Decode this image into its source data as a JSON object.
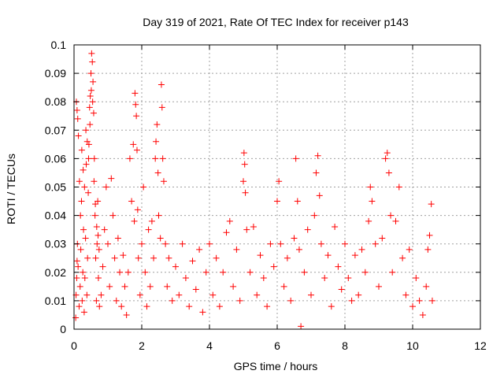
{
  "chart_data": {
    "type": "scatter",
    "title": "Day 319 of 2021, Rate Of TEC Index for receiver p143",
    "xlabel": "GPS time / hours",
    "ylabel": "ROTI / TECUs",
    "xlim": [
      0,
      12
    ],
    "ylim": [
      0,
      0.1
    ],
    "xticks": [
      "0",
      "2",
      "4",
      "6",
      "8",
      "10",
      "12"
    ],
    "yticks": [
      "0",
      "0.01",
      "0.02",
      "0.03",
      "0.04",
      "0.05",
      "0.06",
      "0.07",
      "0.08",
      "0.09",
      "0.1"
    ],
    "grid": true,
    "marker": "plus",
    "series": [
      {
        "name": "ROTI",
        "color": "#ff0000",
        "points": [
          [
            0.05,
            0.004
          ],
          [
            0.06,
            0.012
          ],
          [
            0.08,
            0.018
          ],
          [
            0.09,
            0.024
          ],
          [
            0.1,
            0.03
          ],
          [
            0.12,
            0.022
          ],
          [
            0.15,
            0.008
          ],
          [
            0.18,
            0.015
          ],
          [
            0.2,
            0.028
          ],
          [
            0.22,
            0.045
          ],
          [
            0.24,
            0.01
          ],
          [
            0.26,
            0.02
          ],
          [
            0.28,
            0.035
          ],
          [
            0.3,
            0.006
          ],
          [
            0.32,
            0.018
          ],
          [
            0.34,
            0.032
          ],
          [
            0.36,
            0.058
          ],
          [
            0.38,
            0.012
          ],
          [
            0.4,
            0.025
          ],
          [
            0.42,
            0.048
          ],
          [
            0.44,
            0.065
          ],
          [
            0.46,
            0.078
          ],
          [
            0.48,
            0.082
          ],
          [
            0.5,
            0.09
          ],
          [
            0.52,
            0.097
          ],
          [
            0.54,
            0.094
          ],
          [
            0.56,
            0.087
          ],
          [
            0.58,
            0.076
          ],
          [
            0.6,
            0.06
          ],
          [
            0.62,
            0.04
          ],
          [
            0.64,
            0.025
          ],
          [
            0.66,
            0.01
          ],
          [
            0.68,
            0.03
          ],
          [
            0.7,
            0.045
          ],
          [
            0.72,
            0.018
          ],
          [
            0.75,
            0.008
          ],
          [
            0.07,
            0.08
          ],
          [
            0.09,
            0.077
          ],
          [
            0.11,
            0.074
          ],
          [
            0.13,
            0.068
          ],
          [
            0.16,
            0.052
          ],
          [
            0.19,
            0.04
          ],
          [
            0.23,
            0.063
          ],
          [
            0.27,
            0.056
          ],
          [
            0.31,
            0.05
          ],
          [
            0.35,
            0.07
          ],
          [
            0.39,
            0.066
          ],
          [
            0.43,
            0.06
          ],
          [
            0.47,
            0.072
          ],
          [
            0.51,
            0.084
          ],
          [
            0.55,
            0.08
          ],
          [
            0.59,
            0.052
          ],
          [
            0.63,
            0.044
          ],
          [
            0.67,
            0.036
          ],
          [
            0.71,
            0.033
          ],
          [
            0.74,
            0.028
          ],
          [
            0.8,
            0.012
          ],
          [
            0.85,
            0.022
          ],
          [
            0.9,
            0.035
          ],
          [
            0.95,
            0.05
          ],
          [
            1.0,
            0.03
          ],
          [
            1.05,
            0.015
          ],
          [
            1.1,
            0.053
          ],
          [
            1.15,
            0.04
          ],
          [
            1.2,
            0.025
          ],
          [
            1.25,
            0.01
          ],
          [
            1.3,
            0.032
          ],
          [
            1.35,
            0.02
          ],
          [
            1.4,
            0.008
          ],
          [
            1.45,
            0.026
          ],
          [
            1.5,
            0.015
          ],
          [
            1.55,
            0.005
          ],
          [
            1.6,
            0.02
          ],
          [
            1.65,
            0.06
          ],
          [
            1.7,
            0.045
          ],
          [
            1.75,
            0.065
          ],
          [
            1.78,
            0.038
          ],
          [
            1.8,
            0.083
          ],
          [
            1.82,
            0.079
          ],
          [
            1.84,
            0.075
          ],
          [
            1.86,
            0.063
          ],
          [
            1.88,
            0.042
          ],
          [
            1.9,
            0.025
          ],
          [
            1.95,
            0.012
          ],
          [
            2.0,
            0.03
          ],
          [
            2.05,
            0.05
          ],
          [
            2.1,
            0.02
          ],
          [
            2.15,
            0.008
          ],
          [
            2.2,
            0.035
          ],
          [
            2.25,
            0.015
          ],
          [
            2.3,
            0.038
          ],
          [
            2.35,
            0.025
          ],
          [
            2.4,
            0.06
          ],
          [
            2.42,
            0.066
          ],
          [
            2.45,
            0.072
          ],
          [
            2.48,
            0.055
          ],
          [
            2.5,
            0.04
          ],
          [
            2.55,
            0.032
          ],
          [
            2.58,
            0.086
          ],
          [
            2.6,
            0.078
          ],
          [
            2.62,
            0.06
          ],
          [
            2.65,
            0.052
          ],
          [
            2.7,
            0.03
          ],
          [
            2.75,
            0.015
          ],
          [
            2.8,
            0.025
          ],
          [
            2.9,
            0.01
          ],
          [
            3.0,
            0.022
          ],
          [
            3.1,
            0.012
          ],
          [
            3.2,
            0.03
          ],
          [
            3.3,
            0.018
          ],
          [
            3.4,
            0.008
          ],
          [
            3.5,
            0.024
          ],
          [
            3.6,
            0.014
          ],
          [
            3.7,
            0.028
          ],
          [
            3.8,
            0.006
          ],
          [
            3.9,
            0.02
          ],
          [
            4.0,
            0.03
          ],
          [
            4.1,
            0.012
          ],
          [
            4.2,
            0.025
          ],
          [
            4.3,
            0.008
          ],
          [
            4.4,
            0.02
          ],
          [
            4.5,
            0.034
          ],
          [
            4.6,
            0.038
          ],
          [
            4.7,
            0.015
          ],
          [
            4.8,
            0.028
          ],
          [
            4.9,
            0.01
          ],
          [
            5.0,
            0.052
          ],
          [
            5.02,
            0.062
          ],
          [
            5.04,
            0.058
          ],
          [
            5.06,
            0.048
          ],
          [
            5.1,
            0.035
          ],
          [
            5.2,
            0.02
          ],
          [
            5.3,
            0.036
          ],
          [
            5.4,
            0.012
          ],
          [
            5.5,
            0.026
          ],
          [
            5.6,
            0.018
          ],
          [
            5.7,
            0.008
          ],
          [
            5.8,
            0.03
          ],
          [
            5.9,
            0.022
          ],
          [
            6.0,
            0.045
          ],
          [
            6.05,
            0.052
          ],
          [
            6.1,
            0.03
          ],
          [
            6.2,
            0.015
          ],
          [
            6.3,
            0.025
          ],
          [
            6.4,
            0.01
          ],
          [
            6.5,
            0.032
          ],
          [
            6.55,
            0.06
          ],
          [
            6.6,
            0.045
          ],
          [
            6.65,
            0.028
          ],
          [
            6.7,
            0.001
          ],
          [
            6.8,
            0.02
          ],
          [
            6.9,
            0.035
          ],
          [
            7.0,
            0.012
          ],
          [
            7.1,
            0.04
          ],
          [
            7.15,
            0.055
          ],
          [
            7.2,
            0.061
          ],
          [
            7.25,
            0.047
          ],
          [
            7.3,
            0.03
          ],
          [
            7.4,
            0.018
          ],
          [
            7.5,
            0.026
          ],
          [
            7.6,
            0.008
          ],
          [
            7.7,
            0.036
          ],
          [
            7.8,
            0.022
          ],
          [
            7.9,
            0.014
          ],
          [
            8.0,
            0.03
          ],
          [
            8.1,
            0.018
          ],
          [
            8.2,
            0.01
          ],
          [
            8.3,
            0.026
          ],
          [
            8.4,
            0.012
          ],
          [
            8.5,
            0.028
          ],
          [
            8.6,
            0.02
          ],
          [
            8.7,
            0.038
          ],
          [
            8.75,
            0.05
          ],
          [
            8.8,
            0.045
          ],
          [
            8.9,
            0.03
          ],
          [
            9.0,
            0.015
          ],
          [
            9.1,
            0.032
          ],
          [
            9.2,
            0.06
          ],
          [
            9.25,
            0.062
          ],
          [
            9.3,
            0.055
          ],
          [
            9.35,
            0.04
          ],
          [
            9.4,
            0.02
          ],
          [
            9.5,
            0.038
          ],
          [
            9.6,
            0.05
          ],
          [
            9.7,
            0.025
          ],
          [
            9.8,
            0.012
          ],
          [
            9.9,
            0.028
          ],
          [
            10.0,
            0.008
          ],
          [
            10.1,
            0.018
          ],
          [
            10.2,
            0.01
          ],
          [
            10.3,
            0.005
          ],
          [
            10.4,
            0.015
          ],
          [
            10.45,
            0.028
          ],
          [
            10.5,
            0.033
          ],
          [
            10.55,
            0.044
          ],
          [
            10.58,
            0.01
          ]
        ]
      }
    ]
  }
}
